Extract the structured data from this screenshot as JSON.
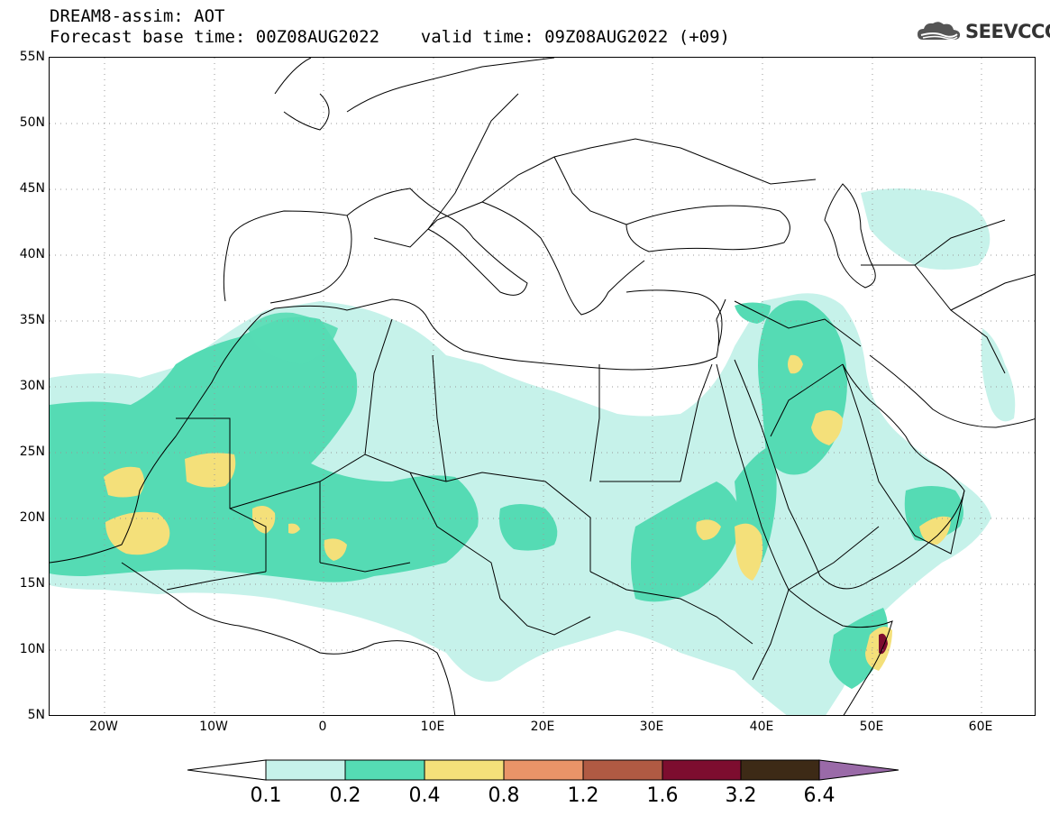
{
  "header": {
    "line1": "DREAM8-assim: AOT",
    "line2": "Forecast base time: 00Z08AUG2022    valid time: 09Z08AUG2022 (+09)"
  },
  "logo": {
    "text": "SEEVCCC",
    "icon": "cloud-logo-icon"
  },
  "map": {
    "lon_range": [
      -25,
      65
    ],
    "lat_range": [
      5,
      55
    ],
    "lat_labels": [
      "55N",
      "50N",
      "45N",
      "40N",
      "35N",
      "30N",
      "25N",
      "20N",
      "15N",
      "10N",
      "5N"
    ],
    "lon_labels": [
      "20W",
      "10W",
      "0",
      "10E",
      "20E",
      "30E",
      "40E",
      "50E",
      "60E"
    ],
    "grid": "dotted"
  },
  "colorbar": {
    "labels": [
      "0.1",
      "0.2",
      "0.4",
      "0.8",
      "1.2",
      "1.6",
      "3.2",
      "6.4"
    ],
    "colors": [
      "#c6f2ea",
      "#55dbb4",
      "#f4e07a",
      "#e99468",
      "#b05a43",
      "#7d0d2f",
      "#3d2a16"
    ],
    "under_color": "#ffffff",
    "over_color": "#9a6aa8"
  }
}
